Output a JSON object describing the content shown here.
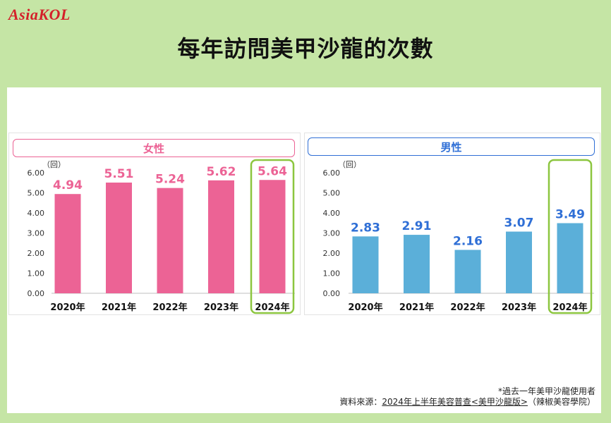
{
  "logo": "AsiaKOL",
  "title": "每年訪問美甲沙龍的次數",
  "colors": {
    "background": "#c5e5a5",
    "female": "#ec6395",
    "male": "#5bafd9",
    "male_label": "#2f6fd6",
    "highlight": "#8cc63f"
  },
  "chart_data": [
    {
      "type": "bar",
      "title": "女性",
      "ylabel": "（回）",
      "categories": [
        "2020年",
        "2021年",
        "2022年",
        "2023年",
        "2024年"
      ],
      "values": [
        4.94,
        5.51,
        5.24,
        5.62,
        5.64
      ],
      "value_labels": [
        "4.94",
        "5.51",
        "5.24",
        "5.62",
        "5.64"
      ],
      "ylim": [
        0,
        6
      ],
      "yticks": [
        "0.00",
        "1.00",
        "2.00",
        "3.00",
        "4.00",
        "5.00",
        "6.00"
      ],
      "highlight_category": "2024年",
      "grid": false
    },
    {
      "type": "bar",
      "title": "男性",
      "ylabel": "（回）",
      "categories": [
        "2020年",
        "2021年",
        "2022年",
        "2023年",
        "2024年"
      ],
      "values": [
        2.83,
        2.91,
        2.16,
        3.07,
        3.49
      ],
      "value_labels": [
        "2.83",
        "2.91",
        "2.16",
        "3.07",
        "3.49"
      ],
      "ylim": [
        0,
        6
      ],
      "yticks": [
        "0.00",
        "1.00",
        "2.00",
        "3.00",
        "4.00",
        "5.00",
        "6.00"
      ],
      "highlight_category": "2024年",
      "grid": false
    }
  ],
  "footnote": "*過去一年美甲沙龍使用者",
  "source": {
    "prefix": "資料來源：",
    "link": "2024年上半年美容普查<美甲沙龍版>",
    "suffix": "（辣椒美容學院）"
  }
}
